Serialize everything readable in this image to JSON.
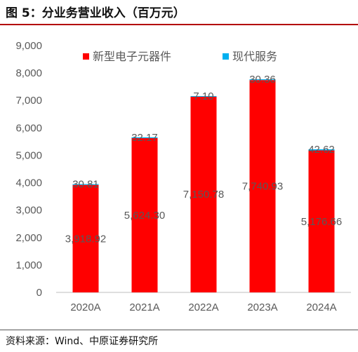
{
  "header": {
    "title": "图 5：分业务营业收入（百万元）"
  },
  "footer": {
    "source": "资料来源：Wind、中原证券研究所"
  },
  "colors": {
    "series1": "#ff0000",
    "series2": "#00b0f0",
    "axis_text": "#595959",
    "axis_line": "#bfbfbf"
  },
  "chart_data": {
    "type": "bar",
    "stacked": true,
    "categories": [
      "2020A",
      "2021A",
      "2022A",
      "2023A",
      "2024A"
    ],
    "series": [
      {
        "name": "新型电子元器件",
        "values": [
          3918.92,
          5624.3,
          7150.78,
          7740.93,
          5176.66
        ],
        "labels": [
          "3,918.92",
          "5,624.30",
          "7,150.78",
          "7,740.93",
          "5,176.66"
        ]
      },
      {
        "name": "现代服务",
        "values": [
          30.81,
          32.17,
          7.1,
          30.36,
          42.62
        ],
        "labels": [
          "30.81",
          "32.17",
          "7.10",
          "30.36",
          "42.62"
        ]
      }
    ],
    "ylim": [
      0,
      9000
    ],
    "yticks": [
      "0",
      "1,000",
      "2,000",
      "3,000",
      "4,000",
      "5,000",
      "6,000",
      "7,000",
      "8,000",
      "9,000"
    ],
    "legend_position": "top",
    "grid": false
  }
}
